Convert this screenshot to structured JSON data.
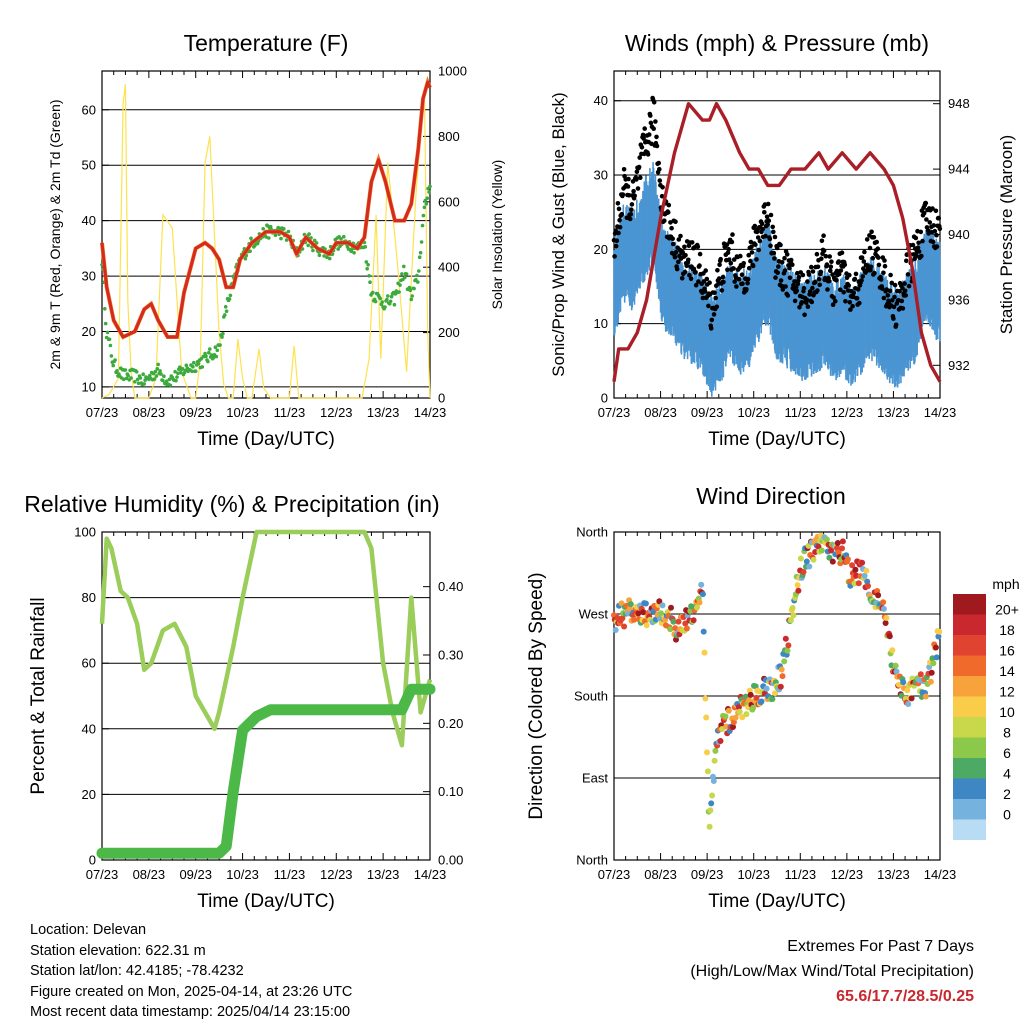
{
  "x_ticks": [
    "07/23",
    "08/23",
    "09/23",
    "10/23",
    "11/23",
    "12/23",
    "13/23",
    "14/23"
  ],
  "xlabel": "Time (Day/UTC)",
  "colors": {
    "red": "#d42a20",
    "orange": "#f07a20",
    "green": "#3caa3c",
    "yellow": "#fde24f",
    "maroon": "#aa1e28",
    "blue": "#4a95d2",
    "black": "#000000",
    "rh": "#9acd5a",
    "precip": "#4cb848"
  },
  "chart_data": [
    {
      "type": "line",
      "title": "Temperature (F)",
      "ylabel": "2m & 9m T (Red, Orange) & 2m Td (Green)",
      "y2label": "Solar Insolation (Yellow)",
      "ylim": [
        8,
        67
      ],
      "y2lim": [
        0,
        1000
      ],
      "y_ticks": [
        10,
        20,
        30,
        40,
        50,
        60
      ],
      "y2_ticks": [
        0,
        200,
        400,
        600,
        800,
        1000
      ],
      "x": [
        7.0,
        7.1,
        7.25,
        7.45,
        7.7,
        7.9,
        8.05,
        8.2,
        8.4,
        8.6,
        8.75,
        9.0,
        9.2,
        9.35,
        9.5,
        9.65,
        9.8,
        9.95,
        10.2,
        10.5,
        10.8,
        11.0,
        11.15,
        11.35,
        11.6,
        11.85,
        12.0,
        12.25,
        12.45,
        12.6,
        12.75,
        12.9,
        13.05,
        13.25,
        13.45,
        13.6,
        13.75,
        13.85,
        13.95,
        14.0
      ],
      "series": [
        {
          "name": "T",
          "values": [
            36,
            28,
            22,
            19,
            20,
            24,
            25,
            22,
            19,
            19,
            27,
            35,
            36,
            35,
            33,
            28,
            28,
            33,
            36,
            38,
            38,
            37,
            34,
            37,
            35,
            34,
            36,
            36,
            35,
            37,
            47,
            51,
            47,
            40,
            40,
            43,
            53,
            62,
            65,
            64
          ]
        },
        {
          "name": "Td",
          "values": [
            33,
            20,
            14,
            12,
            12,
            11,
            12,
            13,
            11,
            12,
            13,
            14,
            15,
            16,
            17,
            24,
            29,
            33,
            36,
            38,
            38,
            37,
            34,
            37,
            35,
            34,
            36,
            36,
            35,
            36,
            27,
            26,
            25,
            26,
            31,
            26,
            30,
            40,
            45,
            47
          ]
        },
        {
          "name": "Solar",
          "x": [
            7.0,
            7.15,
            7.35,
            7.45,
            7.5,
            7.55,
            7.62,
            7.7,
            8.0,
            8.15,
            8.3,
            8.5,
            8.7,
            8.9,
            9.0,
            9.1,
            9.2,
            9.3,
            9.5,
            9.6,
            9.7,
            9.8,
            9.9,
            10.0,
            10.1,
            10.2,
            10.35,
            10.45,
            10.6,
            10.7,
            10.8,
            11.0,
            11.1,
            11.2,
            11.3,
            11.4,
            12.0,
            12.4,
            12.55,
            12.7,
            12.85,
            12.95,
            13.1,
            13.3,
            13.5,
            13.6,
            13.7,
            13.8,
            13.88,
            13.95,
            14.0
          ],
          "values": [
            0,
            10,
            60,
            900,
            960,
            300,
            80,
            0,
            0,
            60,
            560,
            520,
            80,
            0,
            0,
            120,
            720,
            800,
            200,
            40,
            0,
            0,
            180,
            60,
            0,
            0,
            150,
            30,
            0,
            0,
            0,
            0,
            160,
            0,
            0,
            0,
            0,
            0,
            0,
            120,
            560,
            120,
            720,
            420,
            80,
            360,
            620,
            800,
            940,
            200,
            0
          ]
        }
      ]
    },
    {
      "type": "scatter",
      "title": "Winds (mph) & Pressure (mb)",
      "ylabel": "Sonic/Prop Wind & Gust (Blue, Black)",
      "y2label": "Station Pressure (Maroon)",
      "ylim": [
        0,
        44
      ],
      "y2lim": [
        930,
        950
      ],
      "y_ticks": [
        0,
        10,
        20,
        30,
        40
      ],
      "y2_ticks": [
        932,
        936,
        940,
        944,
        948
      ],
      "x": [
        7.0,
        7.2,
        7.4,
        7.6,
        7.85,
        8.05,
        8.25,
        8.5,
        8.7,
        8.9,
        9.1,
        9.3,
        9.5,
        9.7,
        9.9,
        10.1,
        10.3,
        10.5,
        10.7,
        10.9,
        11.1,
        11.3,
        11.5,
        11.7,
        11.9,
        12.1,
        12.3,
        12.5,
        12.7,
        12.9,
        13.1,
        13.3,
        13.5,
        13.7,
        13.9,
        14.0
      ],
      "series": [
        {
          "name": "Wind",
          "values": [
            14,
            20,
            18,
            22,
            25,
            16,
            15,
            12,
            11,
            10,
            7,
            9,
            12,
            10,
            11,
            14,
            17,
            12,
            11,
            10,
            9,
            10,
            11,
            9,
            10,
            8,
            10,
            12,
            11,
            9,
            8,
            10,
            12,
            17,
            15,
            14
          ]
        },
        {
          "name": "Gust",
          "values": [
            20,
            28,
            26,
            32,
            38,
            26,
            22,
            18,
            19,
            16,
            12,
            17,
            20,
            16,
            18,
            22,
            25,
            18,
            17,
            15,
            14,
            16,
            19,
            15,
            17,
            13,
            16,
            20,
            18,
            14,
            12,
            17,
            20,
            24,
            23,
            22
          ]
        },
        {
          "name": "Pressure",
          "x": [
            7.0,
            7.1,
            7.3,
            7.5,
            7.7,
            8.0,
            8.3,
            8.6,
            8.9,
            9.05,
            9.2,
            9.4,
            9.7,
            9.9,
            10.1,
            10.3,
            10.55,
            10.8,
            11.1,
            11.4,
            11.6,
            11.9,
            12.2,
            12.5,
            12.8,
            13.0,
            13.2,
            13.4,
            13.6,
            13.8,
            14.0
          ],
          "values": [
            931,
            933,
            933,
            934,
            936,
            941,
            945,
            948,
            947,
            947,
            948,
            947,
            945,
            944,
            944,
            943,
            943,
            944,
            944,
            945,
            944,
            945,
            944,
            945,
            944,
            943,
            941,
            938,
            934,
            932,
            931
          ]
        }
      ]
    },
    {
      "type": "line",
      "title": "Relative Humidity (%) & Precipitation (in)",
      "ylabel": "Percent & Total Rainfall",
      "ylim": [
        0,
        100
      ],
      "y2lim": [
        0,
        0.48
      ],
      "y_ticks": [
        0,
        20,
        40,
        60,
        80,
        100
      ],
      "y2_ticks": [
        "0.00",
        "0.10",
        "0.20",
        "0.30",
        "0.40"
      ],
      "x": [
        7.0,
        7.1,
        7.2,
        7.4,
        7.55,
        7.75,
        7.9,
        8.05,
        8.3,
        8.55,
        8.8,
        9.0,
        9.2,
        9.4,
        9.5,
        9.65,
        9.8,
        10.0,
        10.3,
        10.6,
        10.8,
        11.0,
        11.2,
        11.4,
        11.6,
        11.75,
        12.0,
        12.2,
        12.4,
        12.6,
        12.75,
        13.0,
        13.2,
        13.4,
        13.6,
        13.8,
        14.0
      ],
      "series": [
        {
          "name": "RH",
          "values": [
            72,
            98,
            95,
            82,
            80,
            72,
            58,
            60,
            70,
            72,
            65,
            50,
            45,
            40,
            45,
            55,
            65,
            80,
            100,
            100,
            100,
            100,
            100,
            100,
            100,
            100,
            100,
            100,
            100,
            100,
            95,
            60,
            45,
            35,
            80,
            45,
            55
          ]
        },
        {
          "name": "Precip",
          "values": [
            0.01,
            0.01,
            0.01,
            0.01,
            0.01,
            0.01,
            0.01,
            0.01,
            0.01,
            0.01,
            0.01,
            0.01,
            0.01,
            0.01,
            0.01,
            0.02,
            0.1,
            0.19,
            0.21,
            0.22,
            0.22,
            0.22,
            0.22,
            0.22,
            0.22,
            0.22,
            0.22,
            0.22,
            0.22,
            0.22,
            0.22,
            0.22,
            0.22,
            0.22,
            0.25,
            0.25,
            0.25
          ]
        }
      ]
    },
    {
      "type": "scatter",
      "title": "Wind Direction",
      "ylabel": "Direction (Colored By Speed)",
      "y_ticks": [
        "North",
        "East",
        "South",
        "West",
        "North"
      ],
      "ylim": [
        0,
        360
      ],
      "colorbar_title": "mph",
      "colorbar_labels": [
        "20+",
        "18",
        "16",
        "14",
        "12",
        "10",
        "8",
        "6",
        "4",
        "2",
        "0"
      ],
      "colorbar_colors": [
        "#a0191e",
        "#c8282e",
        "#e0432f",
        "#f06a2c",
        "#f8a23c",
        "#f9cd4a",
        "#c8d84a",
        "#8cc84a",
        "#4caa64",
        "#3f86c4",
        "#76b2de",
        "#b8dcf4"
      ],
      "x": [
        7.0,
        7.2,
        7.4,
        7.6,
        7.8,
        8.0,
        8.2,
        8.4,
        8.6,
        8.75,
        8.9,
        9.05,
        9.15,
        9.25,
        9.4,
        9.6,
        9.8,
        10.0,
        10.2,
        10.4,
        10.6,
        10.75,
        10.9,
        11.1,
        11.3,
        11.5,
        11.7,
        11.9,
        12.1,
        12.3,
        12.5,
        12.7,
        12.85,
        13.0,
        13.1,
        13.3,
        13.5,
        13.7,
        13.9,
        14.0
      ],
      "values": [
        265,
        270,
        272,
        268,
        270,
        272,
        265,
        250,
        265,
        280,
        300,
        30,
        100,
        140,
        150,
        160,
        170,
        180,
        185,
        190,
        205,
        245,
        300,
        330,
        340,
        345,
        335,
        340,
        310,
        320,
        300,
        280,
        260,
        210,
        190,
        180,
        195,
        185,
        230,
        250
      ]
    }
  ],
  "info": {
    "location": "Location: Delevan",
    "elevation": "Station elevation: 622.31 m",
    "latlon": "Station lat/lon: 42.4185; -78.4232",
    "created": "Figure created on Mon, 2025-04-14, at 23:26 UTC",
    "recent": "Most recent data timestamp: 2025/04/14 23:15:00"
  },
  "extremes": {
    "line1": "Extremes For Past 7 Days",
    "line2": "(High/Low/Max Wind/Total Precipitation)",
    "values": "65.6/17.7/28.5/0.25"
  }
}
